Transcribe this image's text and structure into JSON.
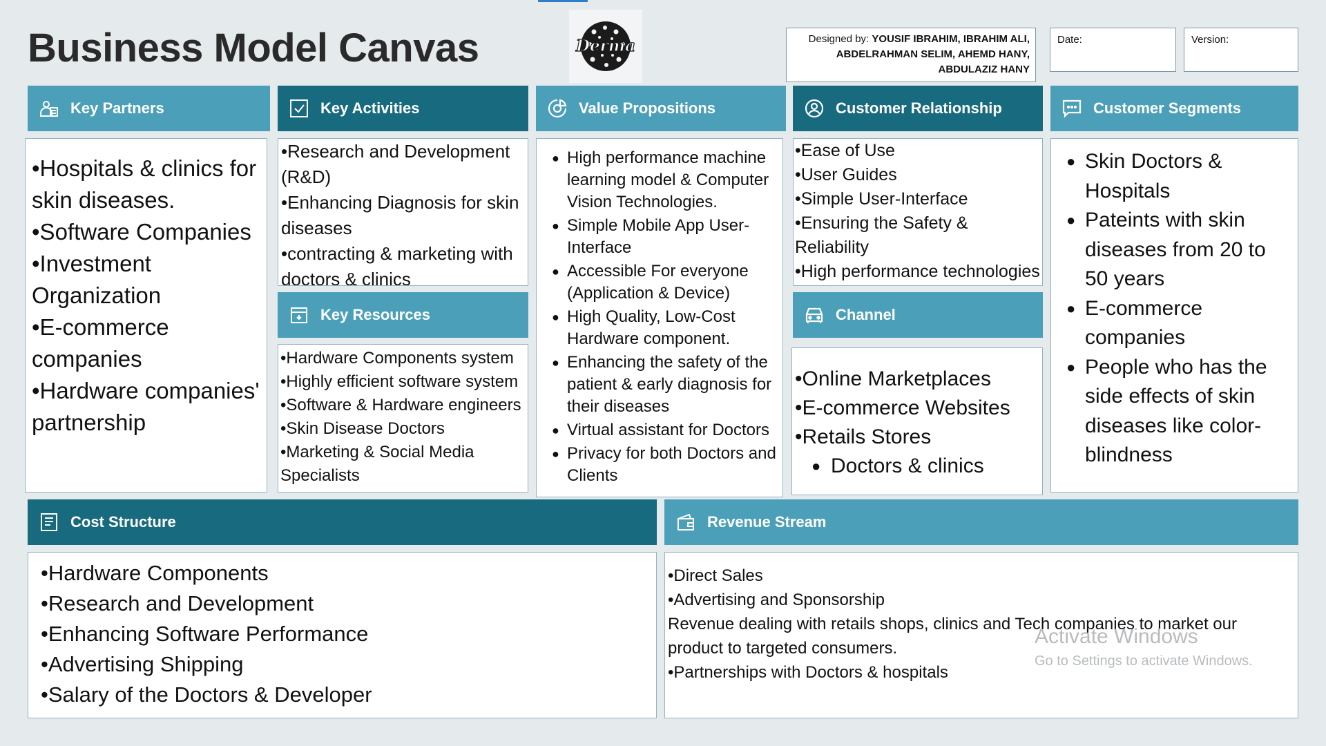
{
  "page": {
    "title": "Business Model Canvas",
    "logo_text": "Derma",
    "designed_by_label": "Designed by:",
    "designed_by_names": [
      "YOUSIF IBRAHIM, IBRAHIM ALI,",
      "ABDELRAHMAN SELIM, AHEMD HANY,",
      "ABDULAZIZ HANY"
    ],
    "date_label": "Date:",
    "version_label": "Version:"
  },
  "colors": {
    "header_light": "#4b9fb8",
    "header_dark": "#186a7e",
    "background": "#e5eaed"
  },
  "sections": {
    "key_partners": {
      "title": "Key Partners",
      "icon": "partners-icon",
      "items": [
        "•Hospitals & clinics for",
        "skin diseases.",
        "•Software Companies",
        "•Investment",
        "Organization",
        "•E-commerce",
        "companies",
        "•Hardware companies'",
        "partnership"
      ]
    },
    "key_activities": {
      "title": "Key Activities",
      "icon": "checkbox-icon",
      "items": [
        "•Research and Development",
        "(R&D)",
        "•Enhancing Diagnosis for skin",
        "diseases",
        "•contracting & marketing with",
        "doctors & clinics"
      ]
    },
    "key_resources": {
      "title": "Key Resources",
      "icon": "resources-icon",
      "items": [
        "•Hardware Components system",
        "•Highly efficient software system",
        "•Software & Hardware engineers",
        "•Skin Disease Doctors",
        "•Marketing & Social Media",
        "Specialists"
      ]
    },
    "value_propositions": {
      "title": "Value Propositions",
      "icon": "pie-chart-icon",
      "items": [
        "High performance machine learning model & Computer Vision Technologies.",
        "Simple Mobile App User-Interface",
        "Accessible For everyone (Application & Device)",
        "High Quality, Low-Cost Hardware component.",
        "Enhancing the safety of the patient & early diagnosis for their diseases",
        "Virtual assistant for Doctors",
        "Privacy for both Doctors and Clients"
      ]
    },
    "customer_relationship": {
      "title": "Customer Relationship",
      "icon": "user-circle-icon",
      "items": [
        "•Ease of Use",
        "•User Guides",
        "•Simple User-Interface",
        "•Ensuring the Safety &",
        "Reliability",
        "•High performance technologies"
      ]
    },
    "channel": {
      "title": "Channel",
      "icon": "car-icon",
      "items": [
        "•Online Marketplaces",
        "•E-commerce Websites",
        "•Retails Stores"
      ],
      "sub_items": [
        "Doctors & clinics"
      ]
    },
    "customer_segments": {
      "title": "Customer Segments",
      "icon": "chat-icon",
      "items": [
        "Skin Doctors & Hospitals",
        "Pateints with skin diseases from 20 to 50 years",
        "E-commerce companies",
        "People who has the side effects of skin diseases like color-blindness"
      ]
    },
    "cost_structure": {
      "title": "Cost Structure",
      "icon": "document-icon",
      "items": [
        "•Hardware Components",
        "•Research and Development",
        "•Enhancing Software Performance",
        "•Advertising Shipping",
        "•Salary of the Doctors & Developer"
      ]
    },
    "revenue_stream": {
      "title": "Revenue Stream",
      "icon": "wallet-icon",
      "items": [
        "•Direct Sales",
        "•Advertising and Sponsorship",
        "Revenue dealing with retails shops, clinics and Tech companies to market our",
        "product to targeted consumers.",
        "•Partnerships with Doctors & hospitals"
      ]
    }
  },
  "watermark": {
    "title": "Activate Windows",
    "subtitle": "Go to Settings to activate Windows."
  }
}
